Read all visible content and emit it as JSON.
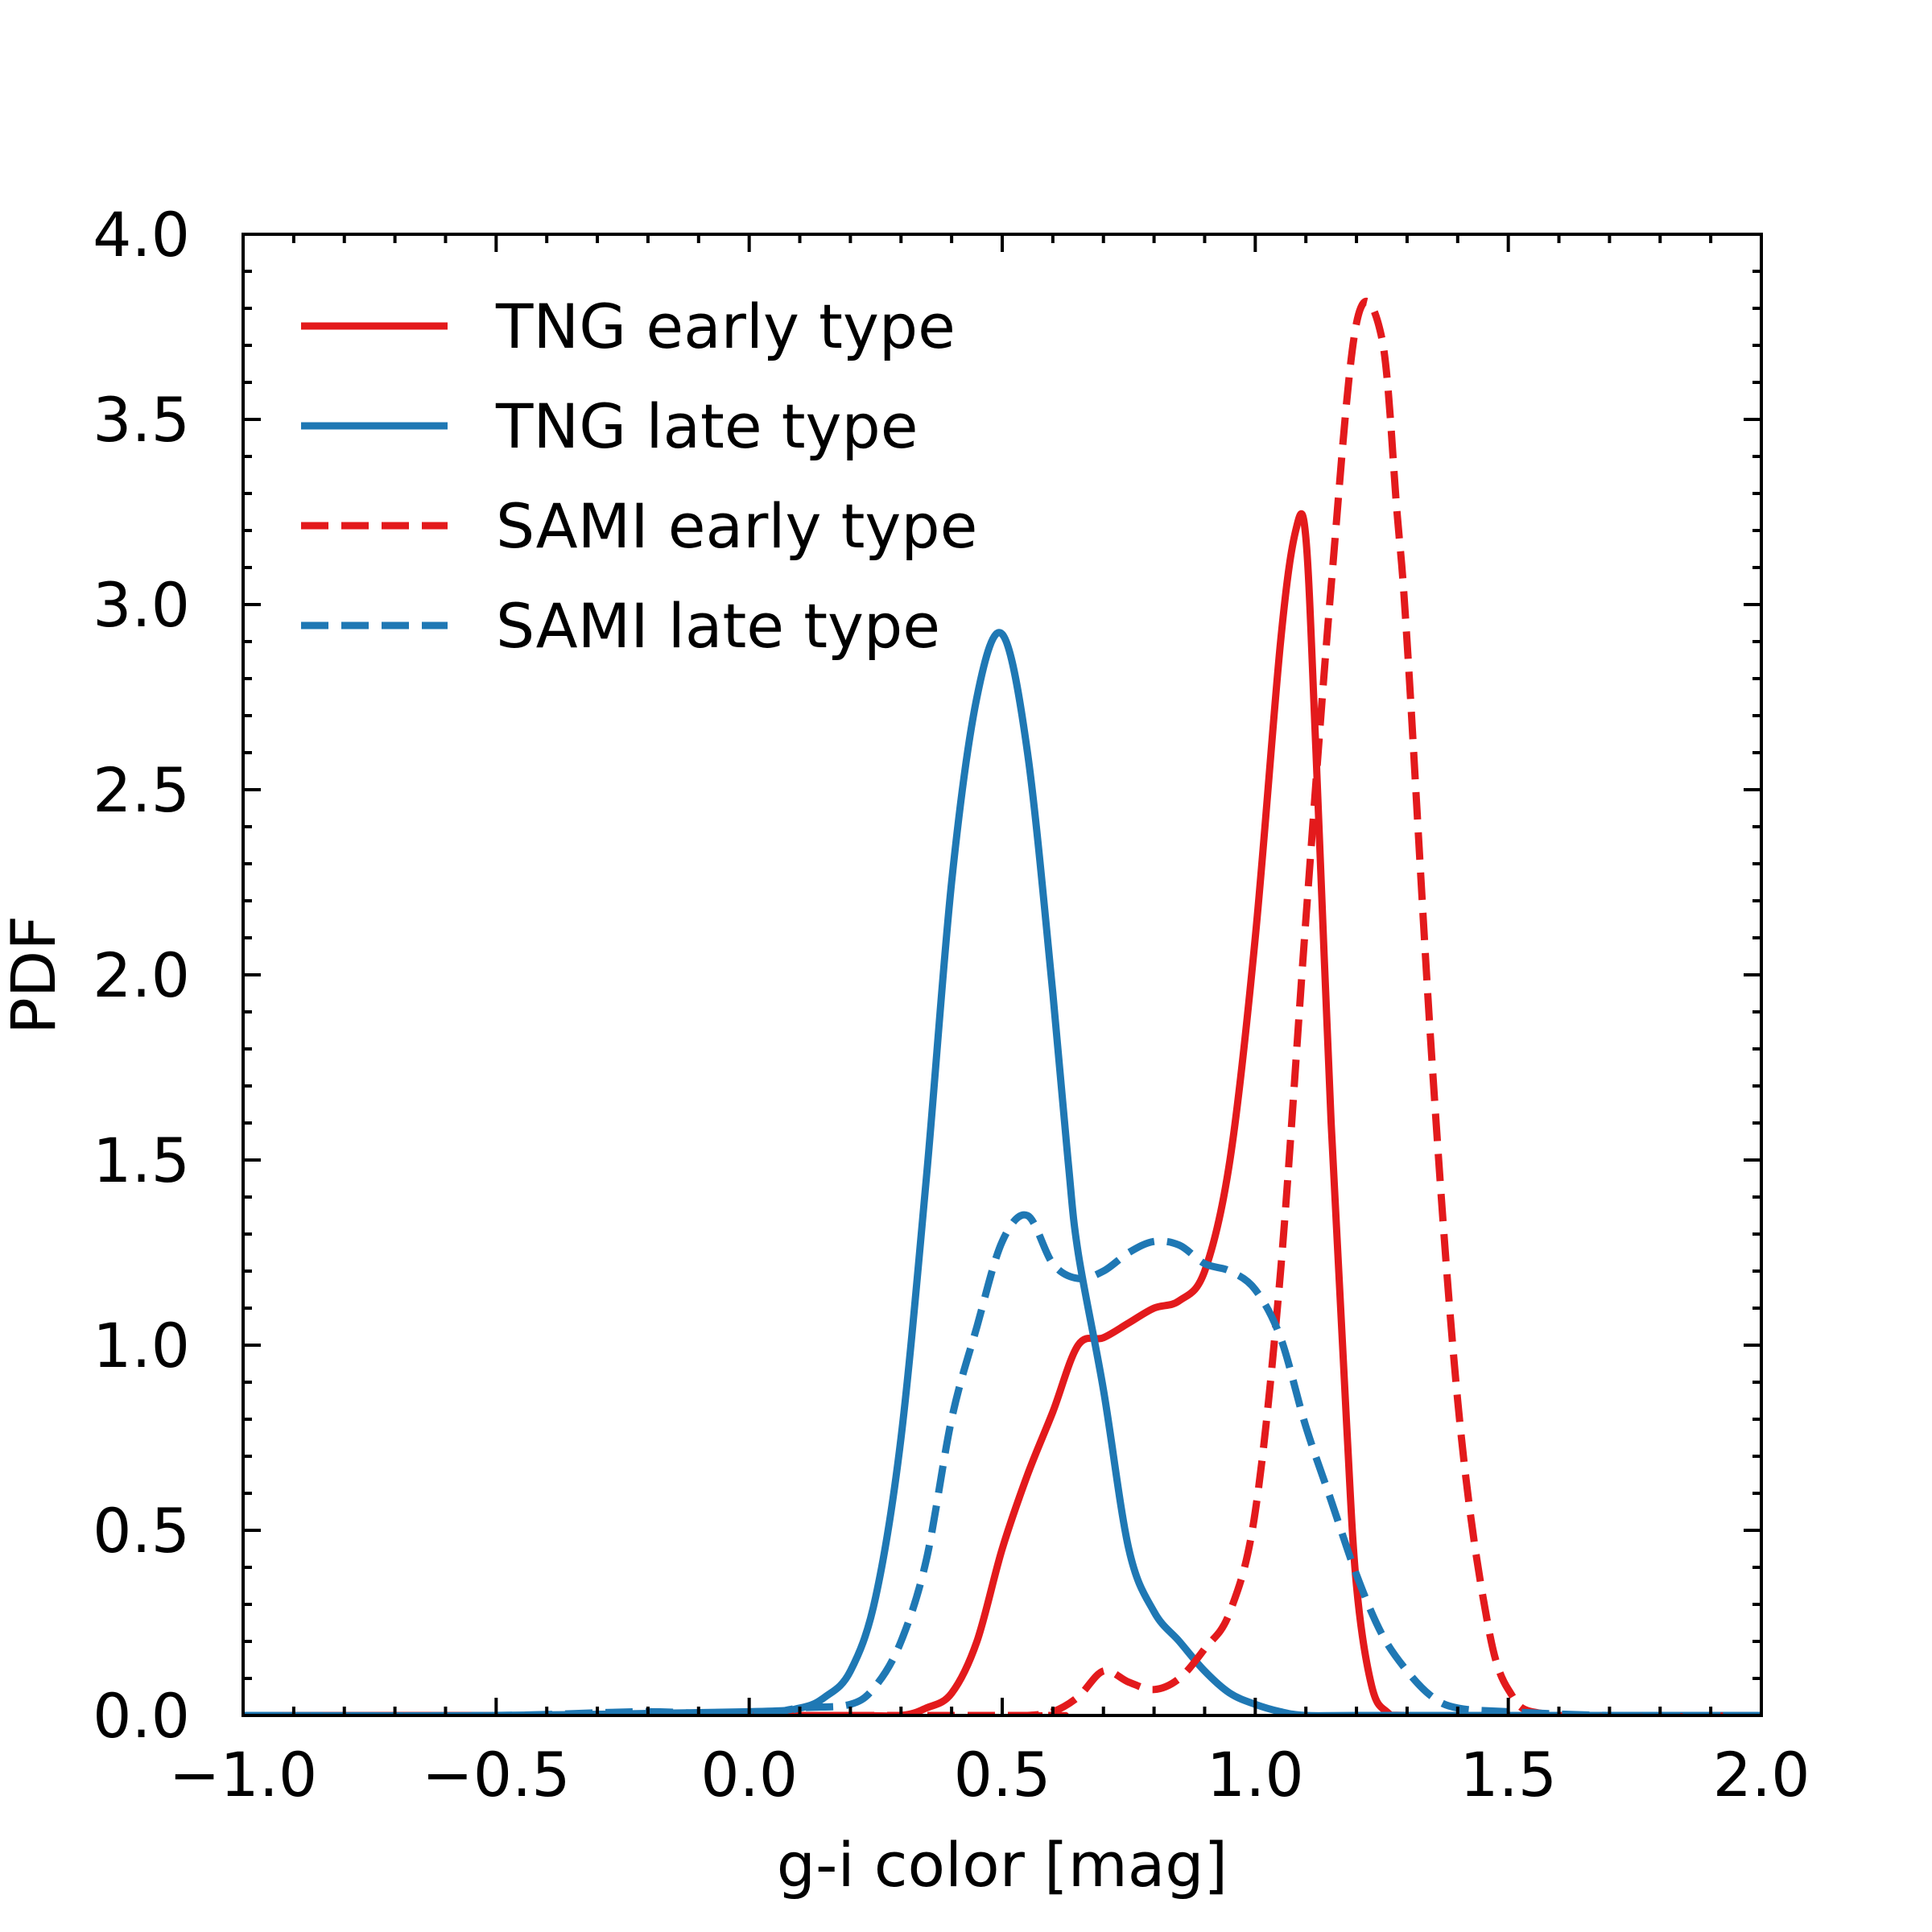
{
  "chart_data": {
    "type": "line",
    "xlabel": "g-i color [mag]",
    "ylabel": "PDF",
    "xlim": [
      -1.0,
      2.0
    ],
    "ylim": [
      0.0,
      4.0
    ],
    "xticks": [
      -1.0,
      -0.5,
      0.0,
      0.5,
      1.0,
      1.5,
      2.0
    ],
    "xtick_labels": [
      "−1.0",
      "−0.5",
      "0.0",
      "0.5",
      "1.0",
      "1.5",
      "2.0"
    ],
    "yticks": [
      0.0,
      0.5,
      1.0,
      1.5,
      2.0,
      2.5,
      3.0,
      3.5,
      4.0
    ],
    "ytick_labels": [
      "0.0",
      "0.5",
      "1.0",
      "1.5",
      "2.0",
      "2.5",
      "3.0",
      "3.5",
      "4.0"
    ],
    "grid": false,
    "legend_position": "top-left",
    "series": [
      {
        "name": "TNG early type",
        "color": "#e31a1c",
        "dash": "solid",
        "x": [
          -1.0,
          0.0,
          0.2,
          0.3,
          0.35,
          0.4,
          0.45,
          0.5,
          0.55,
          0.6,
          0.65,
          0.7,
          0.75,
          0.8,
          0.85,
          0.9,
          0.95,
          1.0,
          1.05,
          1.08,
          1.1,
          1.12,
          1.15,
          1.18,
          1.2,
          1.23,
          1.26,
          1.3,
          1.5,
          2.0
        ],
        "y": [
          0.0,
          0.0,
          0.0,
          0.0,
          0.02,
          0.06,
          0.2,
          0.45,
          0.65,
          0.82,
          1.0,
          1.02,
          1.06,
          1.1,
          1.12,
          1.2,
          1.5,
          2.1,
          2.9,
          3.2,
          3.18,
          2.6,
          1.6,
          0.8,
          0.35,
          0.08,
          0.01,
          0.0,
          0.0,
          0.0
        ]
      },
      {
        "name": "TNG late type",
        "color": "#1f78b4",
        "dash": "solid",
        "x": [
          -1.0,
          -0.5,
          0.0,
          0.1,
          0.15,
          0.2,
          0.25,
          0.3,
          0.35,
          0.4,
          0.45,
          0.5,
          0.55,
          0.6,
          0.63,
          0.65,
          0.7,
          0.75,
          0.8,
          0.85,
          0.9,
          0.95,
          1.0,
          1.05,
          1.1,
          1.2,
          1.5,
          2.0
        ],
        "y": [
          0.0,
          0.0,
          0.01,
          0.02,
          0.05,
          0.12,
          0.32,
          0.75,
          1.45,
          2.25,
          2.75,
          2.92,
          2.6,
          1.95,
          1.5,
          1.25,
          0.88,
          0.45,
          0.28,
          0.2,
          0.12,
          0.06,
          0.03,
          0.01,
          0.0,
          0.0,
          0.0,
          0.0
        ]
      },
      {
        "name": "SAMI early type",
        "color": "#e31a1c",
        "dash": "dashed",
        "x": [
          -1.0,
          0.5,
          0.55,
          0.6,
          0.65,
          0.7,
          0.75,
          0.8,
          0.85,
          0.9,
          0.95,
          1.0,
          1.05,
          1.1,
          1.15,
          1.2,
          1.25,
          1.28,
          1.3,
          1.35,
          1.4,
          1.45,
          1.5,
          1.6,
          2.0
        ],
        "y": [
          0.0,
          0.0,
          0.0,
          0.01,
          0.05,
          0.12,
          0.09,
          0.07,
          0.1,
          0.18,
          0.28,
          0.55,
          1.2,
          2.15,
          3.05,
          3.76,
          3.72,
          3.25,
          2.9,
          1.75,
          0.85,
          0.32,
          0.07,
          0.0,
          0.0
        ]
      },
      {
        "name": "SAMI late type",
        "color": "#1f78b4",
        "dash": "dashed",
        "x": [
          -1.0,
          -0.5,
          -0.2,
          0.0,
          0.1,
          0.2,
          0.25,
          0.3,
          0.35,
          0.4,
          0.45,
          0.5,
          0.55,
          0.6,
          0.65,
          0.7,
          0.75,
          0.8,
          0.85,
          0.9,
          0.95,
          1.0,
          1.05,
          1.1,
          1.15,
          1.2,
          1.25,
          1.3,
          1.35,
          1.4,
          1.5,
          1.7,
          2.0
        ],
        "y": [
          0.0,
          0.0,
          0.01,
          0.0,
          0.02,
          0.03,
          0.08,
          0.2,
          0.42,
          0.8,
          1.05,
          1.28,
          1.35,
          1.22,
          1.18,
          1.2,
          1.25,
          1.28,
          1.27,
          1.22,
          1.2,
          1.15,
          1.02,
          0.78,
          0.58,
          0.38,
          0.22,
          0.12,
          0.05,
          0.02,
          0.01,
          0.0,
          0.0
        ]
      }
    ]
  }
}
